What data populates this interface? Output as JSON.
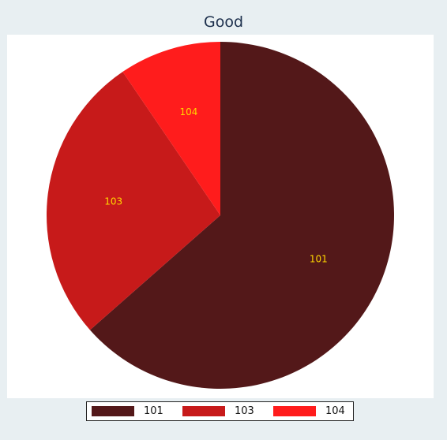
{
  "chart_data": {
    "type": "pie",
    "title": "Good",
    "legend_position": "bottom",
    "slice_label_color": "#ffd700",
    "slices": [
      {
        "label": "101",
        "value": 63.5,
        "color": "#531819"
      },
      {
        "label": "103",
        "value": 27.0,
        "color": "#c71a1a"
      },
      {
        "label": "104",
        "value": 9.5,
        "color": "#ff1c1c"
      }
    ]
  }
}
